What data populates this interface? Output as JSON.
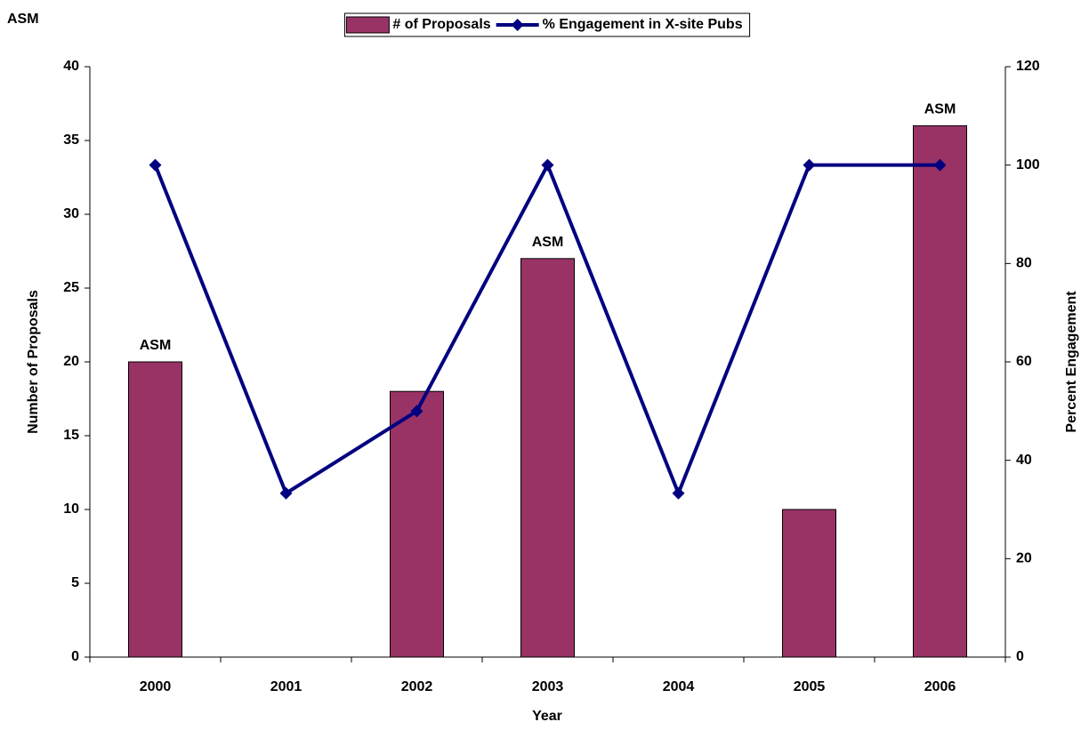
{
  "chart_data": {
    "type": "bar",
    "title": "ASM",
    "xlabel": "Year",
    "ylabel": "Number of Proposals",
    "y2label": "Percent Engagement",
    "categories": [
      "2000",
      "2001",
      "2002",
      "2003",
      "2004",
      "2005",
      "2006"
    ],
    "series": [
      {
        "name": "# of Proposals",
        "type": "bar",
        "color": "#993366",
        "values": [
          20,
          0,
          18,
          27,
          0,
          10,
          36
        ]
      },
      {
        "name": "% Engagement in X-site Pubs",
        "type": "line",
        "axis": "y2",
        "color": "#000080",
        "values": [
          100,
          33.3,
          50,
          100,
          33.3,
          100,
          100
        ]
      }
    ],
    "annotations": [
      {
        "category": "2000",
        "text": "ASM"
      },
      {
        "category": "2003",
        "text": "ASM"
      },
      {
        "category": "2006",
        "text": "ASM"
      }
    ],
    "ylim": [
      0,
      40
    ],
    "yticks": [
      0,
      5,
      10,
      15,
      20,
      25,
      30,
      35,
      40
    ],
    "y2lim": [
      0,
      120
    ],
    "y2ticks": [
      0,
      20,
      40,
      60,
      80,
      100,
      120
    ],
    "legend": "top",
    "grid": false
  }
}
